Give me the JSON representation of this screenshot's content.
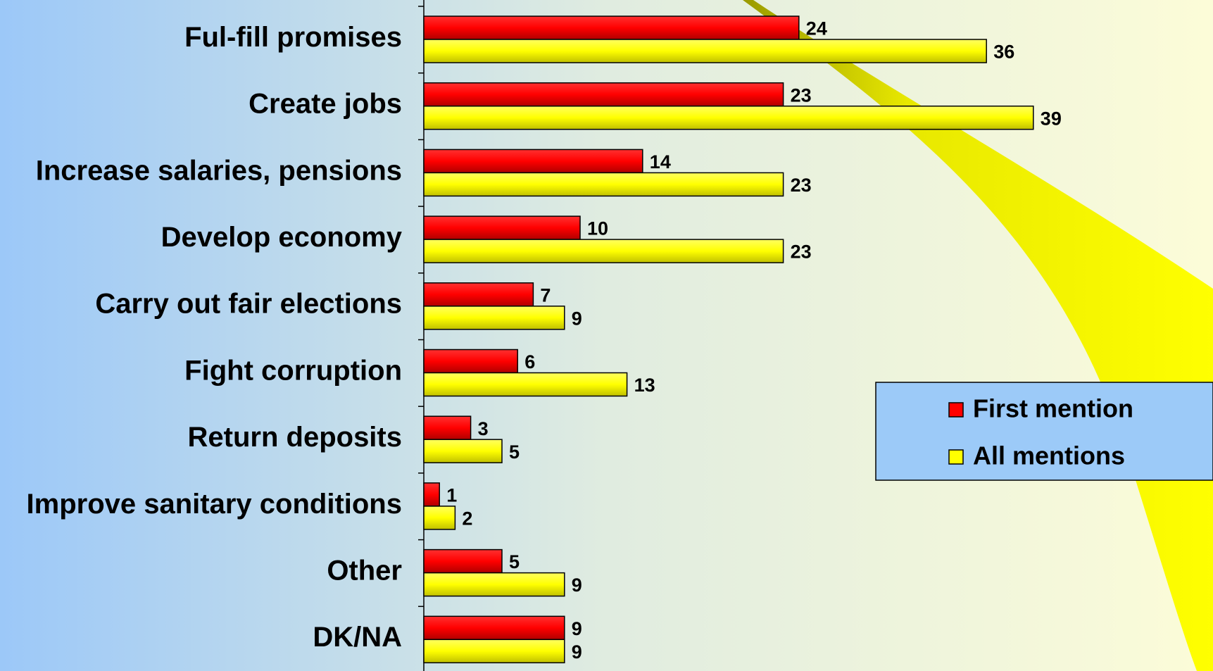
{
  "chart_data": {
    "type": "hbar",
    "categories": [
      "Ful-fill promises",
      "Create jobs",
      "Increase salaries, pensions",
      "Develop economy",
      "Carry out fair elections",
      "Fight corruption",
      "Return deposits",
      "Improve sanitary conditions",
      "Other",
      "DK/NA"
    ],
    "series": [
      {
        "name": "First mention",
        "color": "#ff0000",
        "values": [
          24,
          23,
          14,
          10,
          7,
          6,
          3,
          1,
          5,
          9
        ]
      },
      {
        "name": "All mentions",
        "color": "#ffff00",
        "values": [
          36,
          39,
          23,
          23,
          9,
          13,
          5,
          2,
          9,
          9
        ]
      }
    ],
    "legend": "right"
  }
}
